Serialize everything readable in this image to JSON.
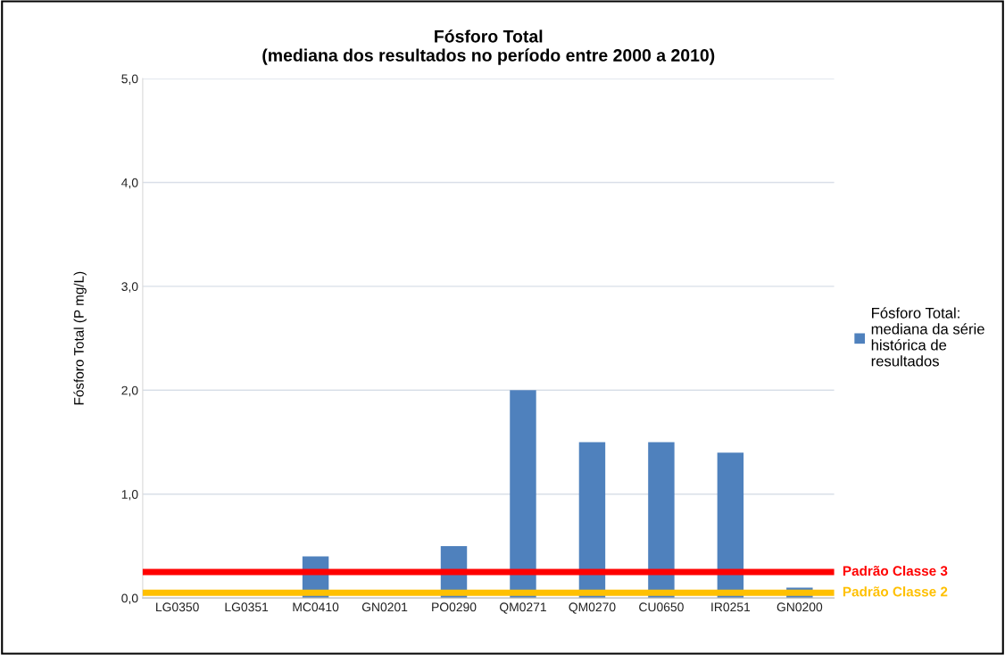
{
  "chart_data": {
    "type": "bar",
    "title": "Fósforo Total\n(mediana dos resultados no período entre 2000 a 2010)",
    "ylabel": "Fósforo Total (P mg/L)",
    "categories": [
      "LG0350",
      "LG0351",
      "MC0410",
      "GN0201",
      "PO0290",
      "QM0271",
      "QM0270",
      "CU0650",
      "IR0251",
      "GN0200"
    ],
    "series": [
      {
        "name": "Fósforo Total: mediana da série histórica de resultados",
        "color": "#4f81bd",
        "values": [
          null,
          null,
          0.4,
          null,
          0.5,
          2.0,
          1.5,
          1.5,
          1.4,
          0.1
        ]
      }
    ],
    "ylim": [
      0,
      5
    ],
    "yticks": [
      {
        "value": 0,
        "label": "0,0"
      },
      {
        "value": 1,
        "label": "1,0"
      },
      {
        "value": 2,
        "label": "2,0"
      },
      {
        "value": 3,
        "label": "3,0"
      },
      {
        "value": 4,
        "label": "4,0"
      },
      {
        "value": 5,
        "label": "5,0"
      }
    ],
    "grid": "y",
    "legend": "right",
    "ref_lines": [
      {
        "axis": "y",
        "value": 0.25,
        "label": "Padrão Classe 3",
        "color": "#ff0000"
      },
      {
        "axis": "y",
        "value": 0.05,
        "label": "Padrão Classe 2",
        "color": "#ffc000"
      }
    ]
  }
}
